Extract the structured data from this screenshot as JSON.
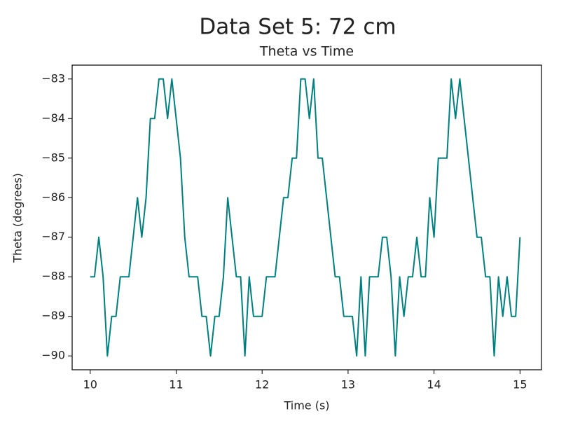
{
  "chart_data": {
    "type": "line",
    "suptitle": "Data Set 5: 72 cm",
    "title": "Theta vs Time",
    "xlabel": "Time (s)",
    "ylabel": "Theta (degrees)",
    "x": [
      10.0,
      10.05,
      10.1,
      10.15,
      10.2,
      10.25,
      10.3,
      10.35,
      10.4,
      10.45,
      10.5,
      10.55,
      10.6,
      10.65,
      10.7,
      10.75,
      10.8,
      10.85,
      10.9,
      10.95,
      11.0,
      11.05,
      11.1,
      11.15,
      11.2,
      11.25,
      11.3,
      11.35,
      11.4,
      11.45,
      11.5,
      11.55,
      11.6,
      11.65,
      11.7,
      11.75,
      11.8,
      11.85,
      11.9,
      11.95,
      12.0,
      12.05,
      12.1,
      12.15,
      12.2,
      12.25,
      12.3,
      12.35,
      12.4,
      12.45,
      12.5,
      12.55,
      12.6,
      12.65,
      12.7,
      12.75,
      12.8,
      12.85,
      12.9,
      12.95,
      13.0,
      13.05,
      13.1,
      13.15,
      13.2,
      13.25,
      13.3,
      13.35,
      13.4,
      13.45,
      13.5,
      13.55,
      13.6,
      13.65,
      13.7,
      13.75,
      13.8,
      13.85,
      13.9,
      13.95,
      14.0,
      14.05,
      14.1,
      14.15,
      14.2,
      14.25,
      14.3,
      14.35,
      14.4,
      14.45,
      14.5,
      14.55,
      14.6,
      14.65,
      14.7,
      14.75,
      14.8,
      14.85,
      14.9,
      14.95,
      15.0
    ],
    "series": [
      {
        "name": "Theta",
        "color": "#008080",
        "values": [
          -88,
          -88,
          -87,
          -88,
          -90,
          -89,
          -89,
          -88,
          -88,
          -88,
          -87,
          -86,
          -87,
          -86,
          -84,
          -84,
          -83,
          -83,
          -84,
          -83,
          -84,
          -85,
          -87,
          -88,
          -88,
          -88,
          -89,
          -89,
          -90,
          -89,
          -89,
          -88,
          -86,
          -87,
          -88,
          -88,
          -90,
          -88,
          -89,
          -89,
          -89,
          -88,
          -88,
          -88,
          -87,
          -86,
          -86,
          -85,
          -85,
          -83,
          -83,
          -84,
          -83,
          -85,
          -85,
          -86,
          -87,
          -88,
          -88,
          -89,
          -89,
          -89,
          -90,
          -88,
          -90,
          -88,
          -88,
          -88,
          -87,
          -87,
          -88,
          -90,
          -88,
          -89,
          -88,
          -88,
          -87,
          -88,
          -88,
          -86,
          -87,
          -85,
          -85,
          -85,
          -83,
          -84,
          -83,
          -84,
          -85,
          -86,
          -87,
          -87,
          -88,
          -88,
          -90,
          -88,
          -89,
          -88,
          -89,
          -89,
          -87
        ]
      }
    ],
    "xlim": [
      9.79,
      15.25
    ],
    "ylim": [
      -90.35,
      -82.65
    ],
    "xticks": [
      10,
      11,
      12,
      13,
      14,
      15
    ],
    "yticks": [
      {
        "value": -90,
        "label": "−90"
      },
      {
        "value": -89,
        "label": "−89"
      },
      {
        "value": -88,
        "label": "−88"
      },
      {
        "value": -87,
        "label": "−87"
      },
      {
        "value": -86,
        "label": "−86"
      },
      {
        "value": -85,
        "label": "−85"
      },
      {
        "value": -84,
        "label": "−84"
      },
      {
        "value": -83,
        "label": "−83"
      }
    ]
  }
}
